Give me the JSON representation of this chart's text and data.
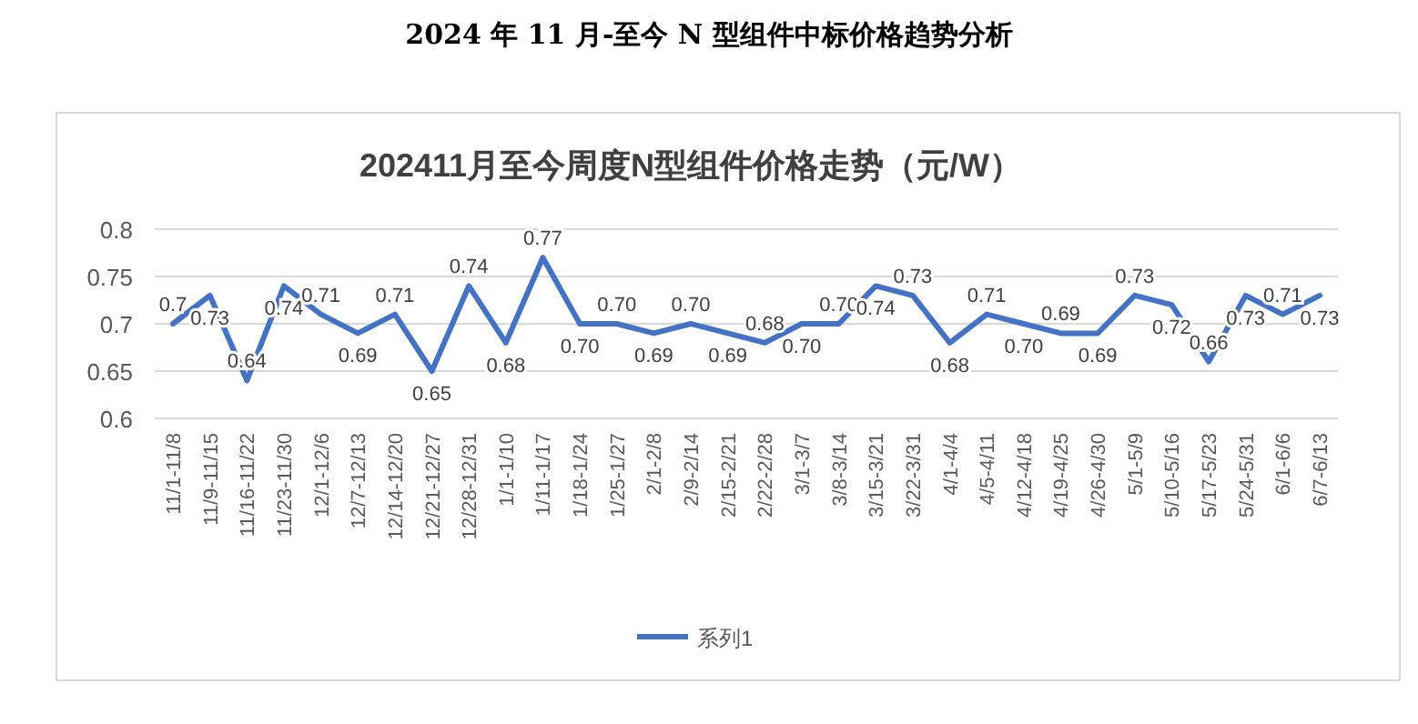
{
  "chart_data": {
    "type": "line",
    "title": "2024 年 11 月-至今 N 型组件中标价格趋势分析",
    "subtitle": "202411月至今周度N型组件价格走势（元/W）",
    "categories": [
      "11/1-11/8",
      "11/9-11/15",
      "11/16-11/22",
      "11/23-11/30",
      "12/1-12/6",
      "12/7-12/13",
      "12/14-12/20",
      "12/21-12/27",
      "12/28-12/31",
      "1/1-1/10",
      "1/11-1/17",
      "1/18-1/24",
      "1/25-1/27",
      "2/1-2/8",
      "2/9-2/14",
      "2/15-2/21",
      "2/22-2/28",
      "3/1-3/7",
      "3/8-3/14",
      "3/15-3/21",
      "3/22-3/31",
      "4/1-4/4",
      "4/5-4/11",
      "4/12-4/18",
      "4/19-4/25",
      "4/26-4/30",
      "5/1-5/9",
      "5/10-5/16",
      "5/17-5/23",
      "5/24-5/31",
      "6/1-6/6",
      "6/7-6/13"
    ],
    "series": [
      {
        "name": "系列1",
        "color": "#4472c4",
        "values": [
          0.7,
          0.73,
          0.64,
          0.74,
          0.71,
          0.69,
          0.71,
          0.65,
          0.74,
          0.68,
          0.77,
          0.7,
          0.7,
          0.69,
          0.7,
          0.69,
          0.68,
          0.7,
          0.7,
          0.74,
          0.73,
          0.68,
          0.71,
          0.7,
          0.69,
          0.69,
          0.73,
          0.72,
          0.66,
          0.73,
          0.71,
          0.73
        ],
        "value_labels": [
          "0.7",
          "0.73",
          "0.64",
          "0.74",
          "0.71",
          "0.69",
          "0.71",
          "0.65",
          "0.74",
          "0.68",
          "0.77",
          "0.70",
          "0.70",
          "0.69",
          "0.70",
          "0.69",
          "0.68",
          "0.70",
          "0.70",
          "0.74",
          "0.73",
          "0.68",
          "0.71",
          "0.70",
          "0.69",
          "0.69",
          "0.73",
          "0.72",
          "0.66",
          "0.73",
          "0.71",
          "0.73"
        ]
      }
    ],
    "ylim": [
      0.6,
      0.8
    ],
    "yticks": [
      0.6,
      0.65,
      0.7,
      0.75,
      0.8
    ],
    "grid": "y",
    "legend": "bottom",
    "marker": "none",
    "line_style": "solid"
  }
}
